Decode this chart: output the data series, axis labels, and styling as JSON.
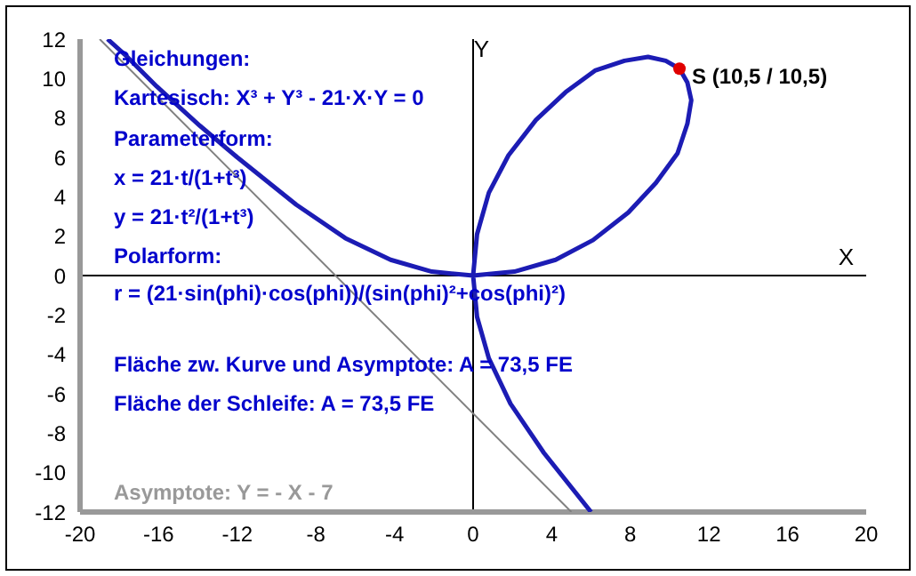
{
  "chart_data": {
    "type": "line",
    "xlabel": "X",
    "ylabel": "Y",
    "xlim": [
      -20,
      20
    ],
    "ylim": [
      -12,
      12
    ],
    "xticks": [
      -20,
      -16,
      -12,
      -8,
      -4,
      0,
      4,
      8,
      12,
      16,
      20
    ],
    "yticks": [
      -12,
      -10,
      -8,
      -6,
      -4,
      -2,
      0,
      2,
      4,
      6,
      8,
      10,
      12
    ],
    "marker": "none",
    "line_style": "solid",
    "series": [
      {
        "color": "#1c1cb4",
        "x": [
          -18.6,
          -17.6,
          -16.1,
          -13.9,
          -12,
          -9,
          -6.5,
          -4.2,
          -2.1,
          0,
          2.1,
          4.2,
          6.1,
          7.9,
          9.3,
          10.4,
          10.9,
          11.1,
          10.9,
          10.5,
          9.8,
          8.9,
          7.7,
          6.2,
          4.7,
          3.2,
          1.8,
          0.8,
          0.2,
          0,
          0.2,
          0.8,
          1.9,
          3.6,
          6
        ],
        "values": [
          12,
          11.1,
          9.6,
          7.6,
          6,
          3.6,
          1.9,
          0.8,
          0.2,
          0,
          0.2,
          0.8,
          1.8,
          3.2,
          4.7,
          6.2,
          7.7,
          8.9,
          9.8,
          10.5,
          10.9,
          11.1,
          10.9,
          10.4,
          9.3,
          7.9,
          6.1,
          4.2,
          2.1,
          0,
          -2.1,
          -4.2,
          -6.5,
          -9,
          -12
        ]
      },
      {
        "color": "#808080",
        "x": [
          -19,
          5
        ],
        "values": [
          12,
          -12
        ]
      },
      {
        "type": "scatter",
        "color": "#e00000",
        "marker": "circle",
        "x": [
          10.5
        ],
        "values": [
          10.5
        ]
      }
    ],
    "annotations": [
      "Gleichungen:",
      "Kartesisch: X³ + Y³ - 21·X·Y = 0",
      "Parameterform:",
      "x = 21·t/(1+t³)",
      "y = 21·t²/(1+t³)",
      "Polarform:",
      "r = (21·sin(phi)·cos(phi))/(sin(phi)²+cos(phi)²)",
      "Fläche zw. Kurve und Asymptote: A = 73,5 FE",
      "Fläche der Schleife: A = 73,5 FE",
      "Asymptote: Y = - X - 7",
      {
        "text": "S (10,5 / 10,5)",
        "x": 10.5,
        "y": 10.5
      }
    ]
  }
}
